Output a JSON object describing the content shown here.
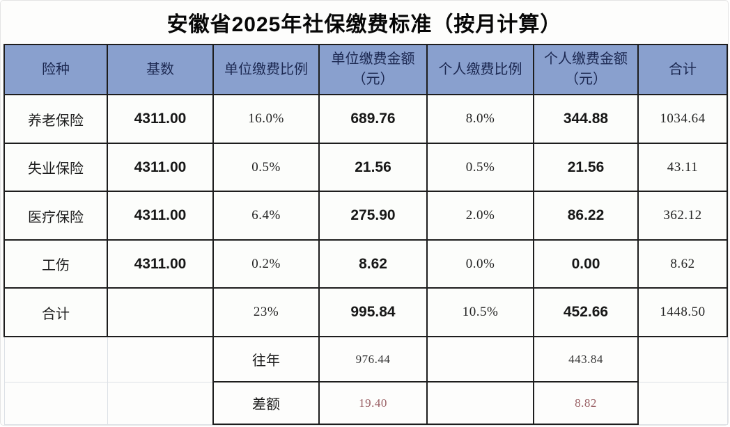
{
  "title": "安徽省2025年社保缴费标准（按月计算）",
  "table": {
    "columns": [
      "险种",
      "基数",
      "单位缴费比例",
      "单位缴费金额（元）",
      "个人缴费比例",
      "个人缴费金额（元）",
      "合计"
    ],
    "rows": [
      {
        "insurance": "养老保险",
        "base": "4311.00",
        "employer_rate": "16.0%",
        "employer_amount": "689.76",
        "personal_rate": "8.0%",
        "personal_amount": "344.88",
        "total": "1034.64"
      },
      {
        "insurance": "失业保险",
        "base": "4311.00",
        "employer_rate": "0.5%",
        "employer_amount": "21.56",
        "personal_rate": "0.5%",
        "personal_amount": "21.56",
        "total": "43.11"
      },
      {
        "insurance": "医疗保险",
        "base": "4311.00",
        "employer_rate": "6.4%",
        "employer_amount": "275.90",
        "personal_rate": "2.0%",
        "personal_amount": "86.22",
        "total": "362.12"
      },
      {
        "insurance": "工伤",
        "base": "4311.00",
        "employer_rate": "0.2%",
        "employer_amount": "8.62",
        "personal_rate": "0.0%",
        "personal_amount": "0.00",
        "total": "8.62"
      }
    ],
    "total_row": {
      "insurance": "合计",
      "base": "",
      "employer_rate": "23%",
      "employer_amount": "995.84",
      "personal_rate": "10.5%",
      "personal_amount": "452.66",
      "total": "1448.50"
    },
    "history_rows": [
      {
        "label": "往年",
        "employer_amount": "976.44",
        "personal_amount": "443.84"
      },
      {
        "label": "差额",
        "employer_amount": "19.40",
        "personal_amount": "8.82"
      }
    ]
  },
  "colors": {
    "header_bg": "#89A0CE",
    "header_text": "#1b2750",
    "table_border": "#1d1d1d",
    "difference_value": "#9a6065"
  }
}
